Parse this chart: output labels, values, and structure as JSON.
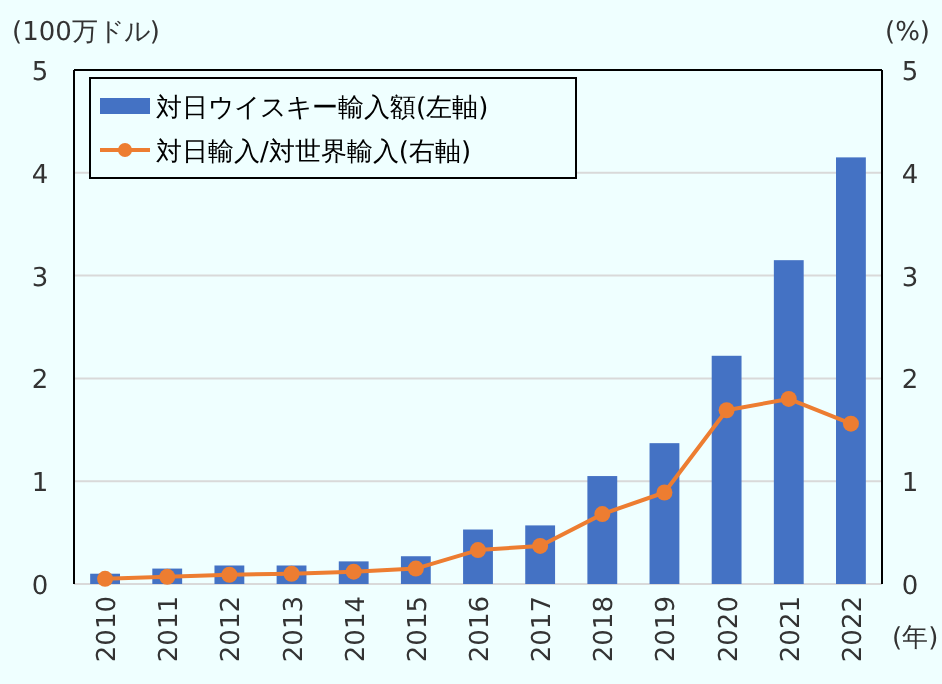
{
  "chart_data": {
    "type": "bar",
    "xlabel": "(年)",
    "ylabel": "(100万ドル)",
    "y2label": "(%)",
    "categories": [
      "2010",
      "2011",
      "2012",
      "2013",
      "2014",
      "2015",
      "2016",
      "2017",
      "2018",
      "2019",
      "2020",
      "2021",
      "2022"
    ],
    "series": [
      {
        "name": "対日ウイスキー輸入額(左軸)",
        "color": "#4472c4",
        "values": [
          0.1,
          0.15,
          0.18,
          0.18,
          0.22,
          0.27,
          0.53,
          0.57,
          1.05,
          1.37,
          2.22,
          3.15,
          4.15
        ]
      },
      {
        "name": "対日輸入/対世界輸入(右軸)",
        "type": "line",
        "axis": "y2",
        "color": "#ed7d31",
        "marker": "circle",
        "values": [
          0.05,
          0.07,
          0.09,
          0.1,
          0.12,
          0.15,
          0.33,
          0.37,
          0.68,
          0.89,
          1.69,
          1.8,
          1.56
        ]
      }
    ],
    "ylim": [
      0,
      5
    ],
    "yticks": [
      0,
      1,
      2,
      3,
      4,
      5
    ],
    "y2lim": [
      0,
      5
    ],
    "y2ticks": [
      0,
      1,
      2,
      3,
      4,
      5
    ],
    "grid": "y",
    "legend": "top left"
  }
}
